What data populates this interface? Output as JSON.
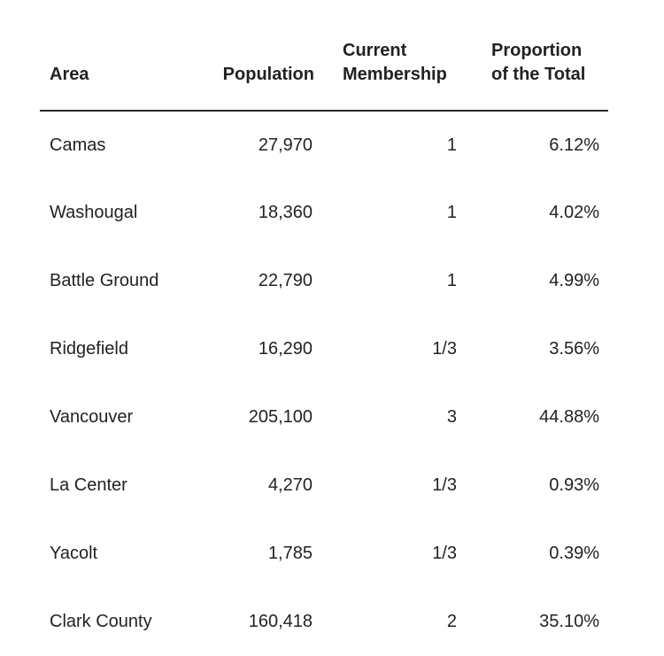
{
  "table": {
    "headers": {
      "area": "Area",
      "population": "Population",
      "membership_line1": "Current",
      "membership_line2": "Membership",
      "proportion_line1": "Proportion",
      "proportion_line2": "of the Total"
    },
    "rows": [
      {
        "area": "Camas",
        "population": "27,970",
        "membership": "1",
        "proportion": "6.12%"
      },
      {
        "area": "Washougal",
        "population": "18,360",
        "membership": "1",
        "proportion": "4.02%"
      },
      {
        "area": "Battle Ground",
        "population": "22,790",
        "membership": "1",
        "proportion": "4.99%"
      },
      {
        "area": "Ridgefield",
        "population": "16,290",
        "membership": "1/3",
        "proportion": "3.56%"
      },
      {
        "area": "Vancouver",
        "population": "205,100",
        "membership": "3",
        "proportion": "44.88%"
      },
      {
        "area": "La Center",
        "population": "4,270",
        "membership": "1/3",
        "proportion": "0.93%"
      },
      {
        "area": "Yacolt",
        "population": "1,785",
        "membership": "1/3",
        "proportion": "0.39%"
      },
      {
        "area": "Clark County",
        "population": "160,418",
        "membership": "2",
        "proportion": "35.10%"
      }
    ]
  }
}
